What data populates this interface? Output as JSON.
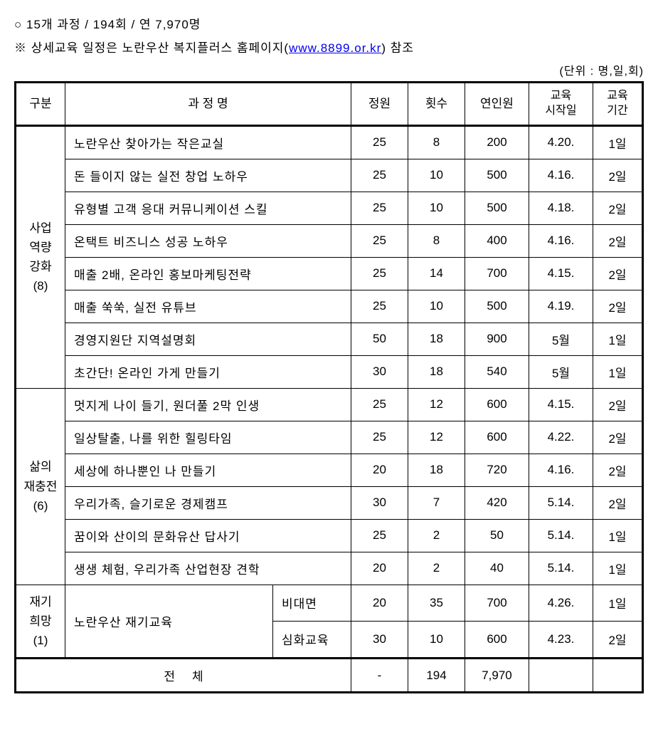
{
  "bullet": "○  15개 과정 / 194회 / 연 7,970명",
  "note_prefix": "※ 상세교육 일정은 노란우산 복지플러스 홈페이지(",
  "note_link": "www.8899.or.kr",
  "note_suffix": ") 참조",
  "unit": "(단위 : 명,일,회)",
  "headers": {
    "category": "구분",
    "course": "과 정 명",
    "capacity": "정원",
    "count": "횟수",
    "annual": "연인원",
    "start_date_l1": "교육",
    "start_date_l2": "시작일",
    "duration_l1": "교육",
    "duration_l2": "기간"
  },
  "categories": [
    {
      "name_l1": "사업",
      "name_l2": "역량",
      "name_l3": "강화",
      "name_l4": "(8)",
      "rowspan": 8,
      "rows": [
        {
          "course": "노란우산 찾아가는 작은교실",
          "capacity": "25",
          "count": "8",
          "annual": "200",
          "start": "4.20.",
          "duration": "1일"
        },
        {
          "course": "돈 들이지 않는 실전 창업 노하우",
          "capacity": "25",
          "count": "10",
          "annual": "500",
          "start": "4.16.",
          "duration": "2일"
        },
        {
          "course": "유형별 고객 응대 커뮤니케이션 스킬",
          "capacity": "25",
          "count": "10",
          "annual": "500",
          "start": "4.18.",
          "duration": "2일"
        },
        {
          "course": "온택트 비즈니스 성공 노하우",
          "capacity": "25",
          "count": "8",
          "annual": "400",
          "start": "4.16.",
          "duration": "2일"
        },
        {
          "course": "매출 2배, 온라인 홍보마케팅전략",
          "capacity": "25",
          "count": "14",
          "annual": "700",
          "start": "4.15.",
          "duration": "2일"
        },
        {
          "course": "매출 쑥쑥, 실전 유튜브",
          "capacity": "25",
          "count": "10",
          "annual": "500",
          "start": "4.19.",
          "duration": "2일"
        },
        {
          "course": "경영지원단 지역설명회",
          "capacity": "50",
          "count": "18",
          "annual": "900",
          "start": "5월",
          "duration": "1일"
        },
        {
          "course": "초간단! 온라인 가게 만들기",
          "capacity": "30",
          "count": "18",
          "annual": "540",
          "start": "5월",
          "duration": "1일"
        }
      ]
    },
    {
      "name_l1": "삶의",
      "name_l2": "재충전",
      "name_l3": "(6)",
      "name_l4": "",
      "rowspan": 6,
      "rows": [
        {
          "course": "멋지게 나이 들기, 원더풀 2막 인생",
          "capacity": "25",
          "count": "12",
          "annual": "600",
          "start": "4.15.",
          "duration": "2일"
        },
        {
          "course": "일상탈출, 나를 위한 힐링타임",
          "capacity": "25",
          "count": "12",
          "annual": "600",
          "start": "4.22.",
          "duration": "2일"
        },
        {
          "course": "세상에 하나뿐인 나 만들기",
          "capacity": "20",
          "count": "18",
          "annual": "720",
          "start": "4.16.",
          "duration": "2일"
        },
        {
          "course": "우리가족, 슬기로운 경제캠프",
          "capacity": "30",
          "count": "7",
          "annual": "420",
          "start": "5.14.",
          "duration": "2일"
        },
        {
          "course": "꿈이와 산이의 문화유산 답사기",
          "capacity": "25",
          "count": "2",
          "annual": "50",
          "start": "5.14.",
          "duration": "1일"
        },
        {
          "course": "생생 체험, 우리가족 산업현장 견학",
          "capacity": "20",
          "count": "2",
          "annual": "40",
          "start": "5.14.",
          "duration": "1일"
        }
      ]
    }
  ],
  "category3": {
    "name_l1": "재기",
    "name_l2": "희망",
    "name_l3": "(1)",
    "course_main": "노란우산 재기교육",
    "sub1": {
      "name": "비대면",
      "capacity": "20",
      "count": "35",
      "annual": "700",
      "start": "4.26.",
      "duration": "1일"
    },
    "sub2": {
      "name": "심화교육",
      "capacity": "30",
      "count": "10",
      "annual": "600",
      "start": "4.23.",
      "duration": "2일"
    }
  },
  "total": {
    "label": "전체",
    "capacity": "-",
    "count": "194",
    "annual": "7,970",
    "start": "",
    "duration": ""
  },
  "colors": {
    "link": "#0000ee",
    "border": "#000000",
    "bg": "#ffffff",
    "text": "#000000"
  }
}
